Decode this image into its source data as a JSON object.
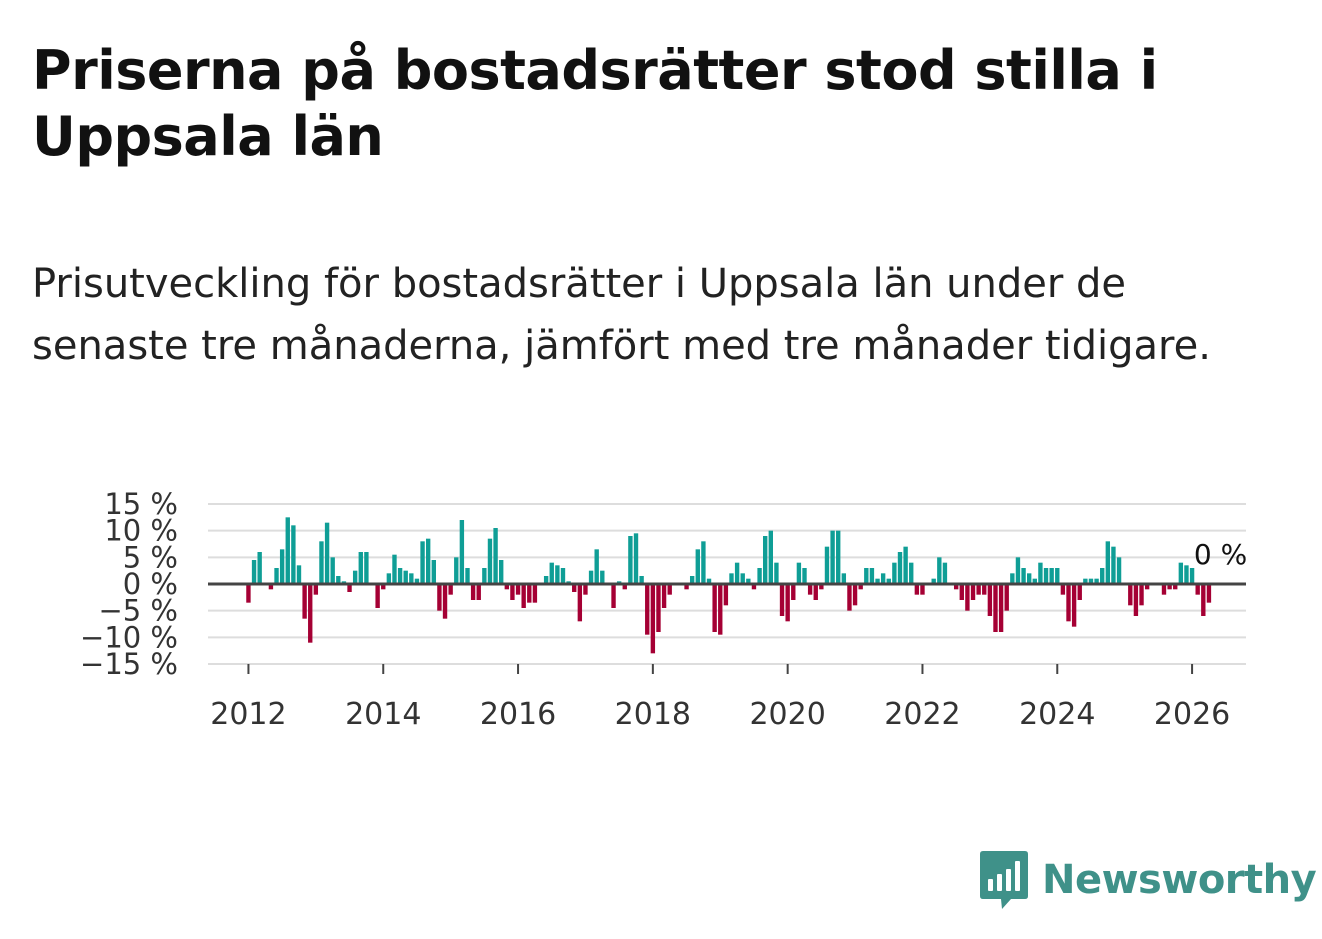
{
  "title": "Priserna på bostadsrätter stod stilla i Uppsala län",
  "subtitle": "Prisutveckling för bostadsrätter i Uppsala län under de senaste tre månaderna, jämfört med tre månader tidigare.",
  "brand": {
    "name": "Newsworthy",
    "color": "#3f9189"
  },
  "colors": {
    "positive": "#0f9e96",
    "negative": "#a50034",
    "grid": "#dddddd",
    "zero_line": "#444444",
    "text": "#333333"
  },
  "chart_data": {
    "type": "bar",
    "title": "Prisutveckling för bostadsrätter i Uppsala län",
    "xlabel": "",
    "ylabel": "",
    "unit": "%",
    "ylim": [
      -15,
      15
    ],
    "yticks": [
      15,
      10,
      5,
      0,
      -5,
      -10,
      -15
    ],
    "ytick_labels": [
      "15 %",
      "10 %",
      "5 %",
      "0 %",
      "−5 %",
      "−10 %",
      "−15 %"
    ],
    "x_start": 2011.75,
    "x_range": [
      2011.4,
      2026.8
    ],
    "xticks": [
      2012,
      2014,
      2016,
      2018,
      2020,
      2022,
      2024,
      2026
    ],
    "xtick_labels": [
      "2012",
      "2014",
      "2016",
      "2018",
      "2020",
      "2022",
      "2024",
      "2026"
    ],
    "last_value_label": "0 %",
    "frequency": "monthly",
    "values": [
      0,
      0,
      0,
      -3.5,
      4.5,
      6,
      0,
      -1,
      3,
      6.5,
      12.5,
      11,
      3.5,
      -6.5,
      -11,
      -2,
      8,
      11.5,
      5,
      1.5,
      0.5,
      -1.5,
      2.5,
      6,
      6,
      0,
      -4.5,
      -1,
      2,
      5.5,
      3,
      2.5,
      2,
      1,
      8,
      8.5,
      4.5,
      -5,
      -6.5,
      -2,
      5,
      12,
      3,
      -3,
      -3,
      3,
      8.5,
      10.5,
      4.5,
      -1,
      -3,
      -2,
      -4.5,
      -3.5,
      -3.5,
      0,
      1.5,
      4,
      3.5,
      3,
      0.5,
      -1.5,
      -7,
      -2,
      2.5,
      6.5,
      2.5,
      0,
      -4.5,
      0.5,
      -1,
      9,
      9.5,
      1.5,
      -9.5,
      -13,
      -9,
      -4.5,
      -2,
      0,
      0,
      -1,
      1.5,
      6.5,
      8,
      1,
      -9,
      -9.5,
      -4,
      2,
      4,
      2,
      1,
      -1,
      3,
      9,
      10,
      4,
      -6,
      -7,
      -3,
      4,
      3,
      -2,
      -3,
      -1,
      7,
      10,
      10,
      2,
      -5,
      -4,
      -1,
      3,
      3,
      1,
      2,
      1,
      4,
      6,
      7,
      4,
      -2,
      -2,
      0,
      1,
      5,
      4,
      0,
      -1,
      -3,
      -5,
      -3,
      -2,
      -2,
      -6,
      -9,
      -9,
      -5,
      2,
      5,
      3,
      2,
      1,
      4,
      3,
      3,
      3,
      -2,
      -7,
      -8,
      -3,
      1,
      1,
      1,
      3,
      8,
      7,
      5,
      0,
      -4,
      -6,
      -4,
      -1,
      0,
      0,
      -2,
      -1,
      -1,
      4,
      3.5,
      3,
      -2,
      -6,
      -3.5,
      0
    ]
  }
}
